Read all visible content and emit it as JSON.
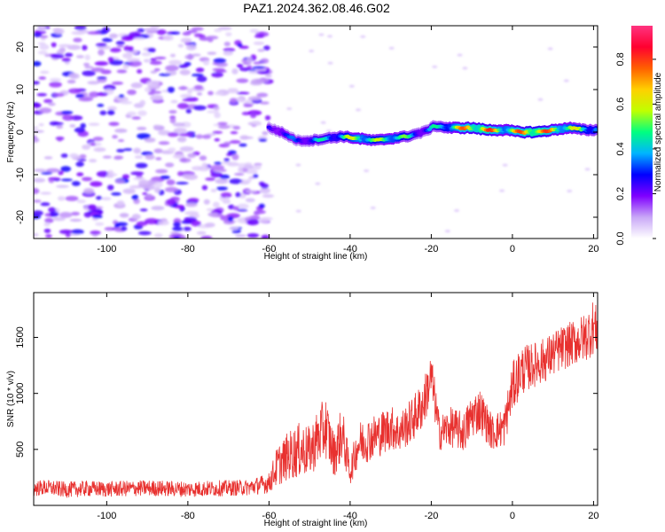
{
  "title": "PAZ1.2024.362.08.46.G02",
  "colors": {
    "snr_line": "#e8312f",
    "axis": "#000000",
    "background": "#ffffff"
  },
  "chart_data": [
    {
      "type": "heatmap",
      "name": "spectrogram",
      "xlabel": "Height of straight line (km)",
      "ylabel": "Frequency (Hz)",
      "xlim": [
        -118,
        21
      ],
      "ylim": [
        -25,
        25
      ],
      "x_ticks": [
        -100,
        -80,
        -60,
        -40,
        -20,
        0,
        20
      ],
      "y_ticks": [
        -20,
        -10,
        0,
        10,
        20
      ],
      "x_tick_labels": [
        "-100",
        "-80",
        "-60",
        "-40",
        "-20",
        "0",
        "20"
      ],
      "y_tick_labels": [
        "-20",
        "-10",
        "0",
        "10",
        "20"
      ],
      "grid": false,
      "noise_region_x": [
        -118,
        -60
      ],
      "noise_amplitude_range": [
        0.05,
        0.3
      ],
      "signal_ridge": {
        "x": [
          -60,
          -57,
          -53,
          -50,
          -46,
          -42,
          -38,
          -34,
          -30,
          -26,
          -22,
          -19,
          -16,
          -13,
          -10,
          -6,
          -2,
          2,
          6,
          10,
          14,
          18,
          21
        ],
        "freq_hz": [
          1,
          0,
          -2,
          -2,
          -1.5,
          -1,
          -1.5,
          -2,
          -1.5,
          -1,
          0,
          1.5,
          1,
          1,
          1,
          0.5,
          0.5,
          0,
          0,
          0.5,
          1,
          0.5,
          0.5
        ],
        "amplitude": [
          0.3,
          0.4,
          0.35,
          0.45,
          0.5,
          0.55,
          0.75,
          0.6,
          0.7,
          0.55,
          0.4,
          0.5,
          0.6,
          0.8,
          0.85,
          0.9,
          0.7,
          0.85,
          0.95,
          0.8,
          0.7,
          0.6,
          0.55
        ]
      },
      "colorbar": {
        "label": "Normalized spectral amplitude",
        "range": [
          0,
          0.95
        ],
        "ticks": [
          0.0,
          0.2,
          0.4,
          0.6,
          0.8
        ],
        "tick_labels": [
          "0.0",
          "0.2",
          "0.4",
          "0.6",
          "0.8"
        ],
        "colormap": [
          "#ffffff",
          "#c9a8f7",
          "#7f00ff",
          "#0000ff",
          "#00b4ff",
          "#00ff80",
          "#c0ff00",
          "#ffd000",
          "#ff6000",
          "#ff0030",
          "#ff3380"
        ]
      }
    },
    {
      "type": "line",
      "name": "snr",
      "xlabel": "Height of straight line (km)",
      "ylabel": "SNR (10 * v/v)",
      "xlim": [
        -118,
        21
      ],
      "ylim": [
        0,
        1900
      ],
      "x_ticks": [
        -100,
        -80,
        -60,
        -40,
        -20,
        0,
        20
      ],
      "y_ticks": [
        500,
        1000,
        1500
      ],
      "x_tick_labels": [
        "-100",
        "-80",
        "-60",
        "-40",
        "-20",
        "0",
        "20"
      ],
      "y_tick_labels": [
        "500",
        "1000",
        "1500"
      ],
      "grid": false,
      "x": [
        -118,
        -115,
        -110,
        -105,
        -100,
        -95,
        -90,
        -85,
        -80,
        -75,
        -70,
        -65,
        -60,
        -58,
        -55,
        -52,
        -50,
        -48,
        -46,
        -44,
        -42,
        -40,
        -38,
        -35,
        -32,
        -30,
        -28,
        -25,
        -22,
        -20,
        -18,
        -15,
        -12,
        -10,
        -8,
        -5,
        -2,
        0,
        2,
        5,
        8,
        10,
        12,
        15,
        18,
        20,
        21
      ],
      "y": [
        150,
        160,
        140,
        150,
        145,
        150,
        155,
        150,
        145,
        150,
        155,
        160,
        200,
        350,
        450,
        500,
        480,
        600,
        700,
        450,
        650,
        300,
        550,
        600,
        650,
        700,
        650,
        750,
        900,
        1150,
        650,
        700,
        650,
        800,
        850,
        650,
        700,
        1050,
        1200,
        1250,
        1300,
        1350,
        1400,
        1450,
        1500,
        1600,
        1550
      ],
      "noise_amplitude": [
        70,
        70,
        70,
        70,
        70,
        70,
        70,
        70,
        70,
        70,
        70,
        70,
        90,
        180,
        220,
        250,
        220,
        260,
        280,
        200,
        250,
        120,
        200,
        200,
        200,
        200,
        180,
        200,
        220,
        220,
        160,
        180,
        180,
        200,
        200,
        160,
        180,
        220,
        220,
        200,
        200,
        200,
        200,
        200,
        220,
        250,
        200
      ]
    }
  ]
}
